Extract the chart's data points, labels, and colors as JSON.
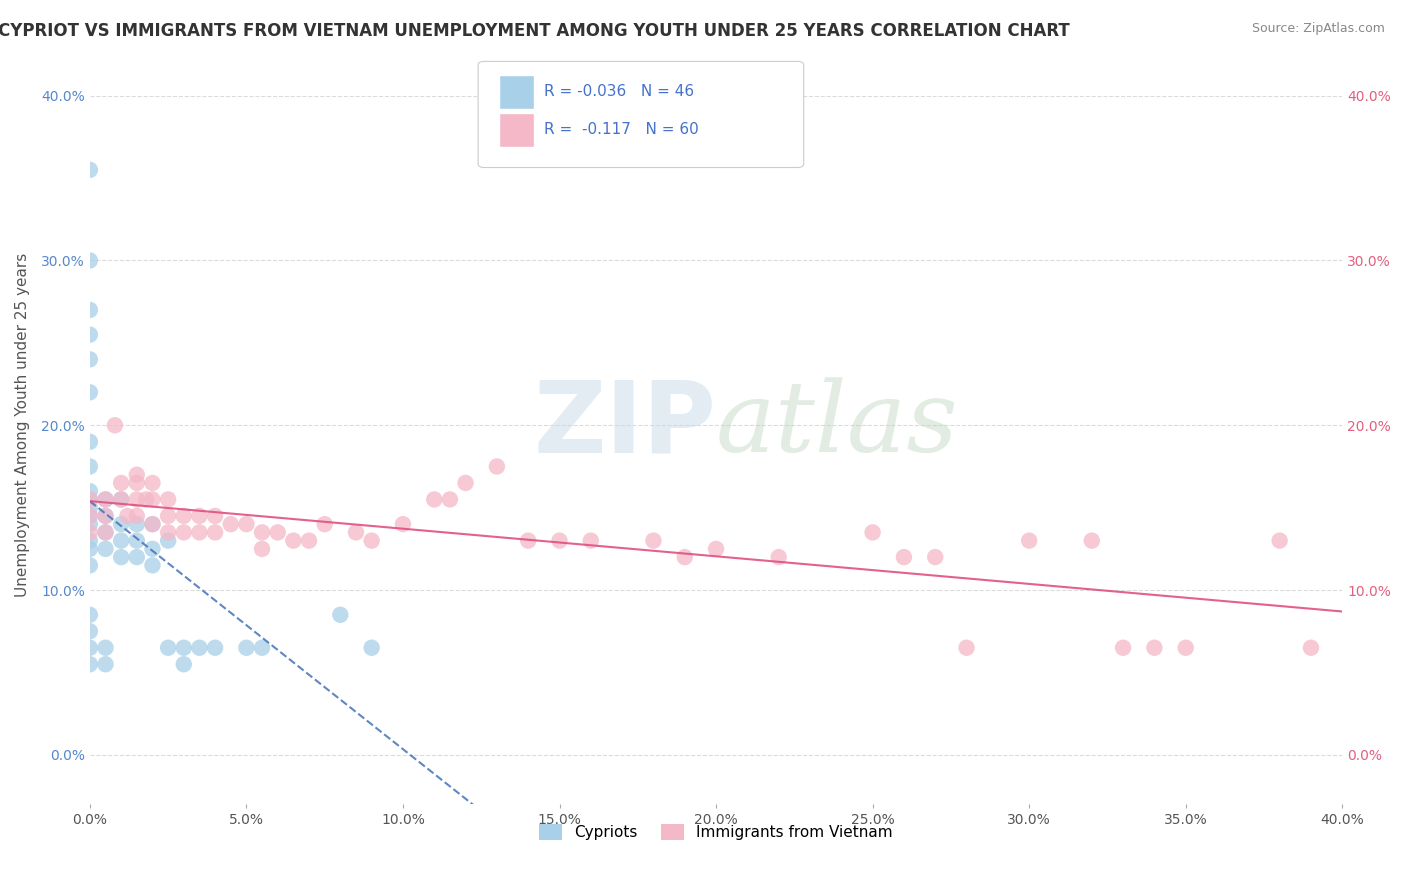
{
  "title": "CYPRIOT VS IMMIGRANTS FROM VIETNAM UNEMPLOYMENT AMONG YOUTH UNDER 25 YEARS CORRELATION CHART",
  "source": "Source: ZipAtlas.com",
  "ylabel": "Unemployment Among Youth under 25 years",
  "xmin": 0.0,
  "xmax": 0.4,
  "ymin": -0.03,
  "ymax": 0.43,
  "legend_R_blue": "-0.036",
  "legend_N_blue": "46",
  "legend_R_pink": "-0.117",
  "legend_N_pink": "60",
  "legend_label_blue": "Cypriots",
  "legend_label_pink": "Immigrants from Vietnam",
  "blue_color": "#a8d0e8",
  "pink_color": "#f4b8c8",
  "blue_line_color": "#4472b8",
  "pink_line_color": "#e05080",
  "blue_scatter_x": [
    0.0,
    0.0,
    0.0,
    0.0,
    0.0,
    0.0,
    0.0,
    0.0,
    0.0,
    0.0,
    0.0,
    0.0,
    0.0,
    0.0,
    0.0,
    0.0,
    0.0,
    0.0,
    0.0,
    0.0,
    0.005,
    0.005,
    0.005,
    0.005,
    0.005,
    0.005,
    0.01,
    0.01,
    0.01,
    0.01,
    0.015,
    0.015,
    0.015,
    0.02,
    0.02,
    0.02,
    0.025,
    0.025,
    0.03,
    0.03,
    0.035,
    0.04,
    0.05,
    0.055,
    0.08,
    0.09
  ],
  "blue_scatter_y": [
    0.355,
    0.3,
    0.27,
    0.255,
    0.24,
    0.22,
    0.19,
    0.175,
    0.16,
    0.155,
    0.15,
    0.145,
    0.14,
    0.13,
    0.125,
    0.115,
    0.085,
    0.075,
    0.065,
    0.055,
    0.155,
    0.145,
    0.135,
    0.125,
    0.065,
    0.055,
    0.155,
    0.14,
    0.13,
    0.12,
    0.14,
    0.13,
    0.12,
    0.14,
    0.125,
    0.115,
    0.13,
    0.065,
    0.065,
    0.055,
    0.065,
    0.065,
    0.065,
    0.065,
    0.085,
    0.065
  ],
  "pink_scatter_x": [
    0.0,
    0.0,
    0.0,
    0.005,
    0.005,
    0.005,
    0.008,
    0.01,
    0.01,
    0.012,
    0.015,
    0.015,
    0.015,
    0.015,
    0.018,
    0.02,
    0.02,
    0.02,
    0.025,
    0.025,
    0.025,
    0.03,
    0.03,
    0.035,
    0.035,
    0.04,
    0.04,
    0.045,
    0.05,
    0.055,
    0.055,
    0.06,
    0.065,
    0.07,
    0.075,
    0.085,
    0.09,
    0.1,
    0.11,
    0.115,
    0.12,
    0.13,
    0.14,
    0.15,
    0.16,
    0.18,
    0.19,
    0.2,
    0.22,
    0.25,
    0.26,
    0.27,
    0.28,
    0.3,
    0.32,
    0.33,
    0.34,
    0.35,
    0.38,
    0.39
  ],
  "pink_scatter_y": [
    0.155,
    0.145,
    0.135,
    0.155,
    0.145,
    0.135,
    0.2,
    0.165,
    0.155,
    0.145,
    0.17,
    0.165,
    0.155,
    0.145,
    0.155,
    0.165,
    0.155,
    0.14,
    0.155,
    0.145,
    0.135,
    0.145,
    0.135,
    0.145,
    0.135,
    0.145,
    0.135,
    0.14,
    0.14,
    0.135,
    0.125,
    0.135,
    0.13,
    0.13,
    0.14,
    0.135,
    0.13,
    0.14,
    0.155,
    0.155,
    0.165,
    0.175,
    0.13,
    0.13,
    0.13,
    0.13,
    0.12,
    0.125,
    0.12,
    0.135,
    0.12,
    0.12,
    0.065,
    0.13,
    0.13,
    0.065,
    0.065,
    0.065,
    0.13,
    0.065
  ],
  "background_color": "#ffffff",
  "grid_color": "#cccccc",
  "watermark_zip": "ZIP",
  "watermark_atlas": "atlas"
}
